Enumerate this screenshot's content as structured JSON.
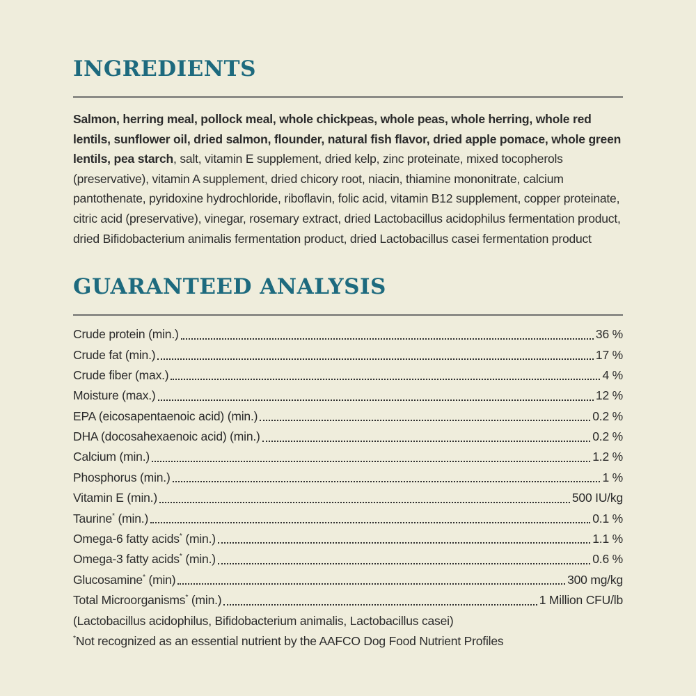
{
  "page": {
    "background_color": "#efeddc",
    "accent_color": "#1d6a7e",
    "rule_color": "#8b8b86",
    "text_color": "#2b2b2b"
  },
  "ingredients": {
    "title": "INGREDIENTS",
    "bold_text": "Salmon, herring meal, pollock meal, whole chickpeas, whole peas, whole herring, whole red lentils, sunflower oil, dried salmon, flounder, natural fish flavor, dried apple pomace, whole green lentils, pea starch",
    "regular_text": ", salt, vitamin E supplement, dried kelp, zinc proteinate, mixed tocopherols (preservative), vitamin A supplement, dried chicory root, niacin, thiamine mononitrate, calcium pantothenate, pyridoxine hydrochloride, riboflavin, folic acid, vitamin B12 supplement, copper proteinate, citric acid (preservative), vinegar, rosemary extract, dried Lactobacillus acidophilus fermentation product, dried Bifidobacterium animalis fermentation product, dried Lactobacillus casei fermentation product"
  },
  "guaranteed_analysis": {
    "title": "GUARANTEED ANALYSIS",
    "rows": [
      {
        "label": "Crude protein (min.)",
        "value": "36 %"
      },
      {
        "label": "Crude fat (min.)",
        "value": "17 %"
      },
      {
        "label": "Crude fiber (max.)",
        "value": "4 %"
      },
      {
        "label": "Moisture (max.)",
        "value": "12 %"
      },
      {
        "label": "EPA (eicosapentaenoic acid) (min.)",
        "value": "0.2 %"
      },
      {
        "label": "DHA (docosahexaenoic acid) (min.)",
        "value": "0.2 %"
      },
      {
        "label": "Calcium (min.)",
        "value": "1.2 %"
      },
      {
        "label": "Phosphorus (min.)",
        "value": "1 %"
      },
      {
        "label": "Vitamin E (min.)",
        "value": "500 IU/kg"
      },
      {
        "label": "Taurine* (min.)",
        "value": "0.1 %"
      },
      {
        "label": "Omega-6 fatty acids* (min.)",
        "value": "1.1 %"
      },
      {
        "label": "Omega-3 fatty acids* (min.)",
        "value": "0.6 %"
      },
      {
        "label": "Glucosamine* (min)",
        "value": "300 mg/kg"
      },
      {
        "label": "Total Microorganisms* (min.)",
        "value": "1 Million CFU/lb"
      }
    ],
    "microorganisms_note": "(Lactobacillus acidophilus, Bifidobacterium animalis, Lactobacillus casei)",
    "footnote": "*Not recognized as an essential nutrient by the AAFCO Dog Food Nutrient Profiles"
  }
}
